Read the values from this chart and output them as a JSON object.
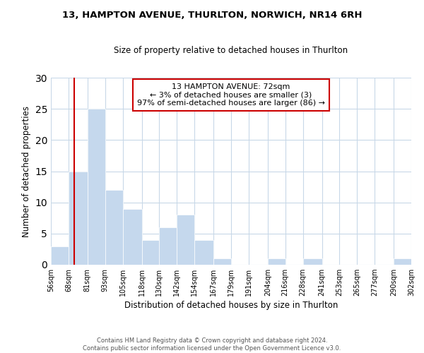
{
  "title": "13, HAMPTON AVENUE, THURLTON, NORWICH, NR14 6RH",
  "subtitle": "Size of property relative to detached houses in Thurlton",
  "xlabel": "Distribution of detached houses by size in Thurlton",
  "ylabel": "Number of detached properties",
  "bar_edges": [
    56,
    68,
    81,
    93,
    105,
    118,
    130,
    142,
    154,
    167,
    179,
    191,
    204,
    216,
    228,
    241,
    253,
    265,
    277,
    290,
    302
  ],
  "bar_heights": [
    3,
    15,
    25,
    12,
    9,
    4,
    6,
    8,
    4,
    1,
    0,
    0,
    1,
    0,
    1,
    0,
    0,
    0,
    0,
    1
  ],
  "bar_color": "#c5d8ed",
  "bar_edge_color": "#ffffff",
  "grid_color": "#c8d8e8",
  "vline_x": 72,
  "vline_color": "#cc0000",
  "annotation_line1": "13 HAMPTON AVENUE: 72sqm",
  "annotation_line2": "← 3% of detached houses are smaller (3)",
  "annotation_line3": "97% of semi-detached houses are larger (86) →",
  "annotation_box_facecolor": "#ffffff",
  "annotation_box_edgecolor": "#cc0000",
  "ylim": [
    0,
    30
  ],
  "yticks": [
    0,
    5,
    10,
    15,
    20,
    25,
    30
  ],
  "tick_labels": [
    "56sqm",
    "68sqm",
    "81sqm",
    "93sqm",
    "105sqm",
    "118sqm",
    "130sqm",
    "142sqm",
    "154sqm",
    "167sqm",
    "179sqm",
    "191sqm",
    "204sqm",
    "216sqm",
    "228sqm",
    "241sqm",
    "253sqm",
    "265sqm",
    "277sqm",
    "290sqm",
    "302sqm"
  ],
  "footer_line1": "Contains HM Land Registry data © Crown copyright and database right 2024.",
  "footer_line2": "Contains public sector information licensed under the Open Government Licence v3.0.",
  "background_color": "#ffffff"
}
